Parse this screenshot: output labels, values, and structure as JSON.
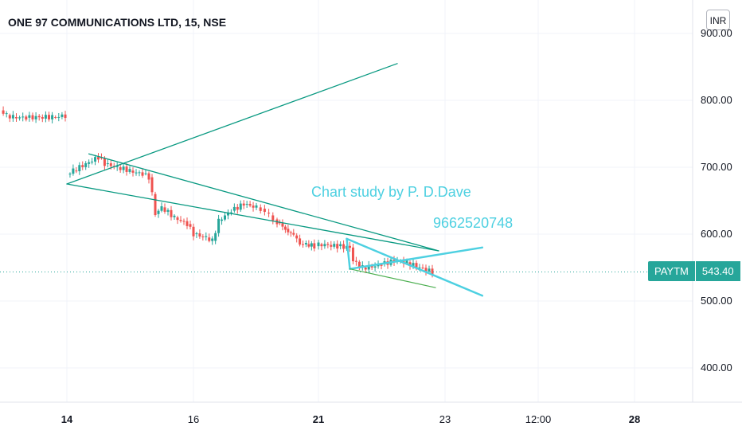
{
  "header": {
    "title": "ONE 97 COMMUNICATIONS LTD, 15, NSE",
    "currency_button": "INR"
  },
  "price_tag": {
    "symbol": "PAYTM",
    "value": "543.40"
  },
  "annotations": {
    "author_text": "Chart study by P. D.Dave",
    "phone_text": "9662520748"
  },
  "colors": {
    "up": "#26a69a",
    "down": "#ef5350",
    "trendline": "#089981",
    "pattern": "#4dd0e1",
    "lower_line": "#4caf50"
  },
  "chart_data": {
    "type": "candlestick",
    "title": "ONE 97 COMMUNICATIONS LTD, 15, NSE",
    "y_axis": {
      "ticks": [
        "400.00",
        "500.00",
        "600.00",
        "700.00",
        "800.00",
        "900.00"
      ],
      "tick_values": [
        400,
        500,
        600,
        700,
        800,
        900
      ],
      "range": [
        350,
        920
      ],
      "position": "right"
    },
    "x_axis": {
      "tick_labels": [
        {
          "label": "14",
          "bold": true
        },
        {
          "label": "16",
          "bold": false
        },
        {
          "label": "21",
          "bold": true
        },
        {
          "label": "23",
          "bold": false
        },
        {
          "label": "12:00",
          "bold": false
        },
        {
          "label": "28",
          "bold": true
        }
      ]
    },
    "last_price": 543.4,
    "price_segments": [
      {
        "session": "prior",
        "points": [
          [
            0,
            785
          ],
          [
            0.5,
            778
          ],
          [
            1,
            775
          ],
          [
            2,
            774
          ],
          [
            3,
            775
          ],
          [
            4,
            775
          ],
          [
            5,
            777
          ]
        ]
      },
      {
        "session": "main",
        "points": [
          [
            14.0,
            690
          ],
          [
            14.1,
            695
          ],
          [
            14.3,
            705
          ],
          [
            14.5,
            715
          ],
          [
            14.6,
            705
          ],
          [
            14.8,
            700
          ],
          [
            15.0,
            695
          ],
          [
            15.1,
            692
          ],
          [
            15.2,
            690
          ],
          [
            15.3,
            685
          ],
          [
            15.35,
            660
          ],
          [
            15.4,
            630
          ],
          [
            15.5,
            640
          ],
          [
            15.7,
            625
          ],
          [
            15.9,
            615
          ],
          [
            16.0,
            600
          ],
          [
            16.2,
            595
          ],
          [
            16.3,
            590
          ],
          [
            16.4,
            620
          ],
          [
            16.6,
            635
          ],
          [
            16.8,
            645
          ],
          [
            17.0,
            640
          ],
          [
            17.2,
            638
          ],
          [
            17.4,
            632
          ],
          [
            17.6,
            628
          ],
          [
            17.8,
            622
          ],
          [
            18.0,
            618
          ],
          [
            18.4,
            608
          ],
          [
            18.8,
            598
          ],
          [
            19.1,
            585
          ],
          [
            19.4,
            585
          ],
          [
            19.8,
            582
          ],
          [
            20.0,
            585
          ],
          [
            20.3,
            582
          ],
          [
            20.5,
            580
          ],
          [
            20.55,
            560
          ],
          [
            20.7,
            550
          ],
          [
            20.9,
            552
          ],
          [
            21.0,
            555
          ],
          [
            21.2,
            560
          ],
          [
            21.4,
            558
          ],
          [
            21.6,
            550
          ],
          [
            21.8,
            543.4
          ]
        ]
      }
    ],
    "drawings": [
      {
        "name": "wedge-upper",
        "from": [
          14.35,
          720
        ],
        "to": [
          21.9,
          575
        ]
      },
      {
        "name": "wedge-lower",
        "from": [
          13.85,
          675
        ],
        "to": [
          21.9,
          575
        ]
      },
      {
        "name": "rising-line",
        "from": [
          13.85,
          675
        ],
        "to": [
          21.25,
          855
        ]
      },
      {
        "name": "pattern-left-leg",
        "from": [
          20.45,
          593
        ],
        "to": [
          20.5,
          548
        ]
      },
      {
        "name": "pattern-top",
        "from": [
          20.45,
          593
        ],
        "to": [
          22.2,
          508
        ]
      },
      {
        "name": "pattern-cross",
        "from": [
          20.5,
          548
        ],
        "to": [
          22.2,
          580
        ]
      },
      {
        "name": "lower-support",
        "from": [
          20.5,
          548
        ],
        "to": [
          21.85,
          520
        ]
      }
    ]
  }
}
